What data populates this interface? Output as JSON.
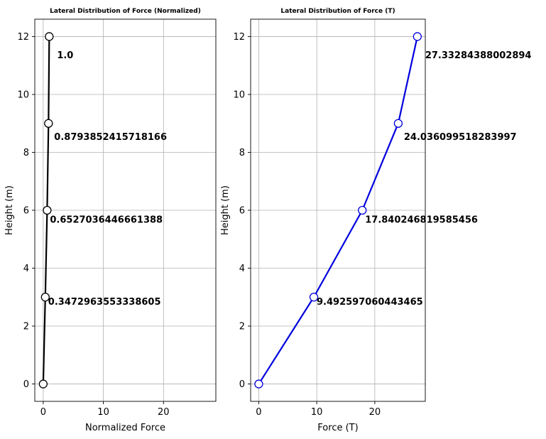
{
  "chart_data": [
    {
      "type": "line",
      "title": "Lateral Distribution of Force (Normalized)",
      "xlabel": "Normalized Force",
      "ylabel": "Height (m)",
      "xlim": [
        -1.4,
        28.7
      ],
      "ylim": [
        -0.6,
        12.6
      ],
      "xticks": [
        0,
        10,
        20
      ],
      "yticks": [
        0,
        2,
        4,
        6,
        8,
        10,
        12
      ],
      "grid": true,
      "line_color": "#000000",
      "series": [
        {
          "x": [
            0.0,
            0.3472963553338605,
            0.6527036446661388,
            0.8793852415718166,
            1.0
          ],
          "y": [
            0,
            3,
            6,
            9,
            12
          ]
        }
      ],
      "point_labels": [
        "",
        "0.3472963553338605",
        "0.6527036446661388",
        "0.8793852415718166",
        "1.0"
      ]
    },
    {
      "type": "line",
      "title": "Lateral Distribution of Force (T)",
      "xlabel": "Force (T)",
      "ylabel": "Height (m)",
      "xlim": [
        -1.4,
        28.7
      ],
      "ylim": [
        -0.6,
        12.6
      ],
      "xticks": [
        0,
        10,
        20
      ],
      "yticks": [
        0,
        2,
        4,
        6,
        8,
        10,
        12
      ],
      "grid": true,
      "line_color": "#0000dd",
      "series": [
        {
          "x": [
            0.0,
            9.492597060443465,
            17.840246819585456,
            24.036099518283997,
            27.33284388002894
          ],
          "y": [
            0,
            3,
            6,
            9,
            12
          ]
        }
      ],
      "point_labels": [
        "",
        "9.492597060443465",
        "17.840246819585456",
        "24.036099518283997",
        "27.33284388002894"
      ]
    }
  ]
}
